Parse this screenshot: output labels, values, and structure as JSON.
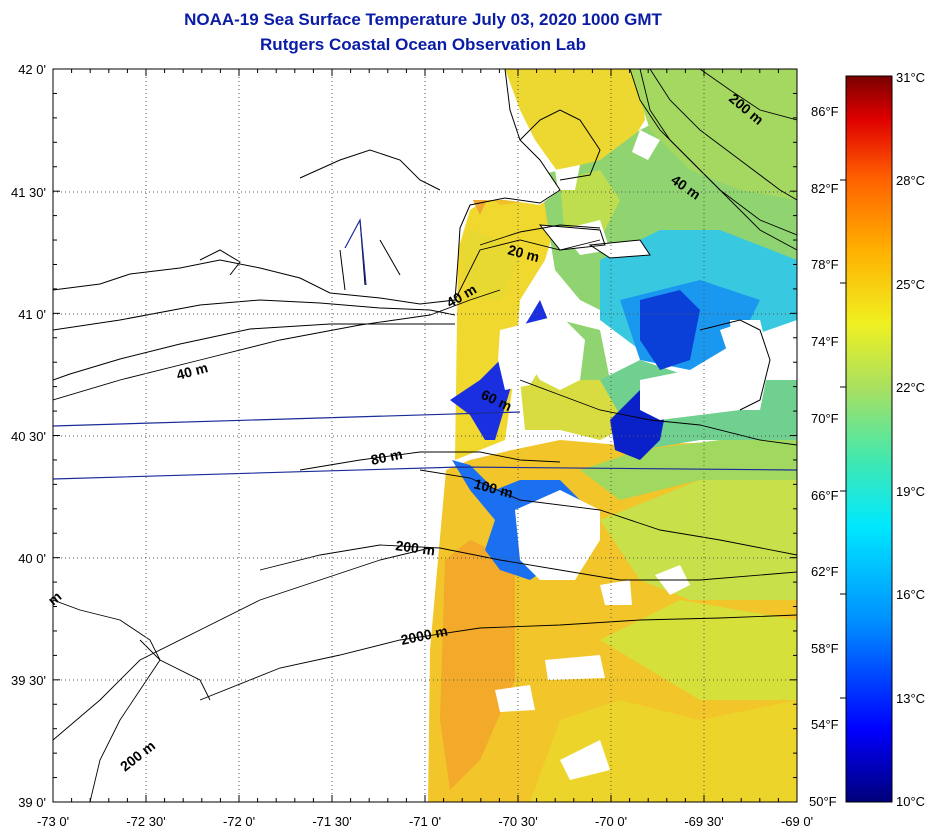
{
  "title": "NOAA-19 Sea Surface Temperature July 03, 2020 1000 GMT",
  "subtitle": "Rutgers Coastal Ocean Observation Lab",
  "colors": {
    "title": "#0a1ca6",
    "land": "#ffffff",
    "coastline": "#000000",
    "track": "#1a2a9a",
    "colormap": [
      "#00007a",
      "#0000ff",
      "#0090ff",
      "#00e8ff",
      "#40e8b0",
      "#a8e060",
      "#f0f020",
      "#ffb000",
      "#ff6000",
      "#e00000",
      "#7a0000"
    ]
  },
  "map": {
    "lat_labels": [
      "42 0'",
      "41 30'",
      "41 0'",
      "40 30'",
      "40 0'",
      "39 30'",
      "39 0'"
    ],
    "lon_labels": [
      "-73 0'",
      "-72 30'",
      "-72 0'",
      "-71 30'",
      "-71 0'",
      "-70 30'",
      "-70 0'",
      "-69 30'",
      "-69 0'"
    ],
    "isobaths": [
      {
        "label": "200 m"
      },
      {
        "label": "40 m"
      },
      {
        "label": "20 m"
      },
      {
        "label": "40 m"
      },
      {
        "label": "40 m"
      },
      {
        "label": "60 m"
      },
      {
        "label": "80 m"
      },
      {
        "label": "100 m"
      },
      {
        "label": "200 m"
      },
      {
        "label": "2000 m"
      },
      {
        "label": "200 m"
      },
      {
        "label": "m"
      }
    ]
  },
  "colorbar": {
    "celsius_labels": [
      "31°C",
      "28°C",
      "25°C",
      "22°C",
      "19°C",
      "16°C",
      "13°C",
      "10°C"
    ],
    "fahrenheit_labels": [
      "86°F",
      "82°F",
      "78°F",
      "74°F",
      "70°F",
      "66°F",
      "62°F",
      "58°F",
      "54°F",
      "50°F"
    ],
    "range_c": [
      10,
      31
    ]
  }
}
